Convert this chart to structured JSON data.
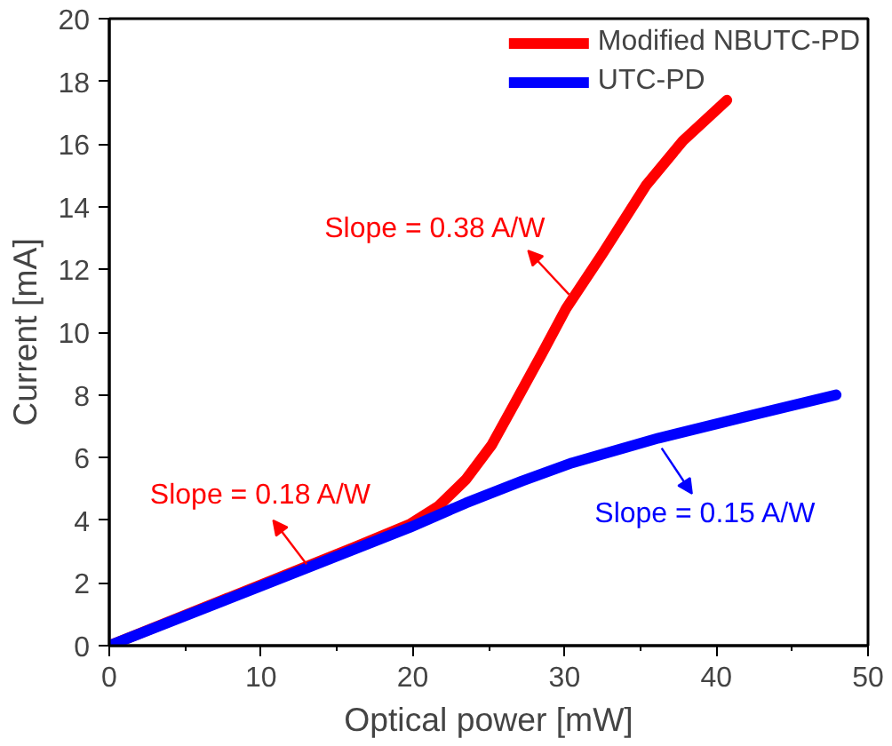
{
  "chart_data": {
    "type": "line",
    "xlabel": "Optical power [mW]",
    "ylabel": "Current [mA]",
    "xlim": [
      0,
      50
    ],
    "ylim": [
      0,
      20
    ],
    "xticks": [
      0,
      10,
      20,
      30,
      40,
      50
    ],
    "yticks": [
      0,
      2,
      4,
      6,
      8,
      10,
      12,
      14,
      16,
      18,
      20
    ],
    "grid": false,
    "legend": "top right",
    "line_style": "solid",
    "marker": "none",
    "series": [
      {
        "name": "Modified NBUTC-PD",
        "color": "#ff0000",
        "x": [
          0,
          16.2,
          19.8,
          21.7,
          23.5,
          25.2,
          26.8,
          28.5,
          30.1,
          32.5,
          35.4,
          37.8,
          40.7
        ],
        "values": [
          0,
          3.15,
          3.87,
          4.45,
          5.3,
          6.4,
          7.8,
          9.3,
          10.75,
          12.5,
          14.7,
          16.1,
          17.4
        ]
      },
      {
        "name": "UTC-PD",
        "color": "#0000ff",
        "x": [
          0,
          10,
          19.8,
          23.5,
          27.2,
          30.5,
          36.2,
          41.9,
          47.9
        ],
        "values": [
          0,
          1.9,
          3.77,
          4.55,
          5.25,
          5.83,
          6.62,
          7.3,
          8.0
        ]
      }
    ],
    "annotations": [
      {
        "text": "Slope = 0.38 A/W",
        "x": 30.3,
        "y": 11.2
      },
      {
        "text": "Slope = 0.18 A/W",
        "x": 13.0,
        "y": 2.6
      },
      {
        "text": "Slope = 0.15 A/W",
        "x": 36.4,
        "y": 6.3
      }
    ]
  }
}
